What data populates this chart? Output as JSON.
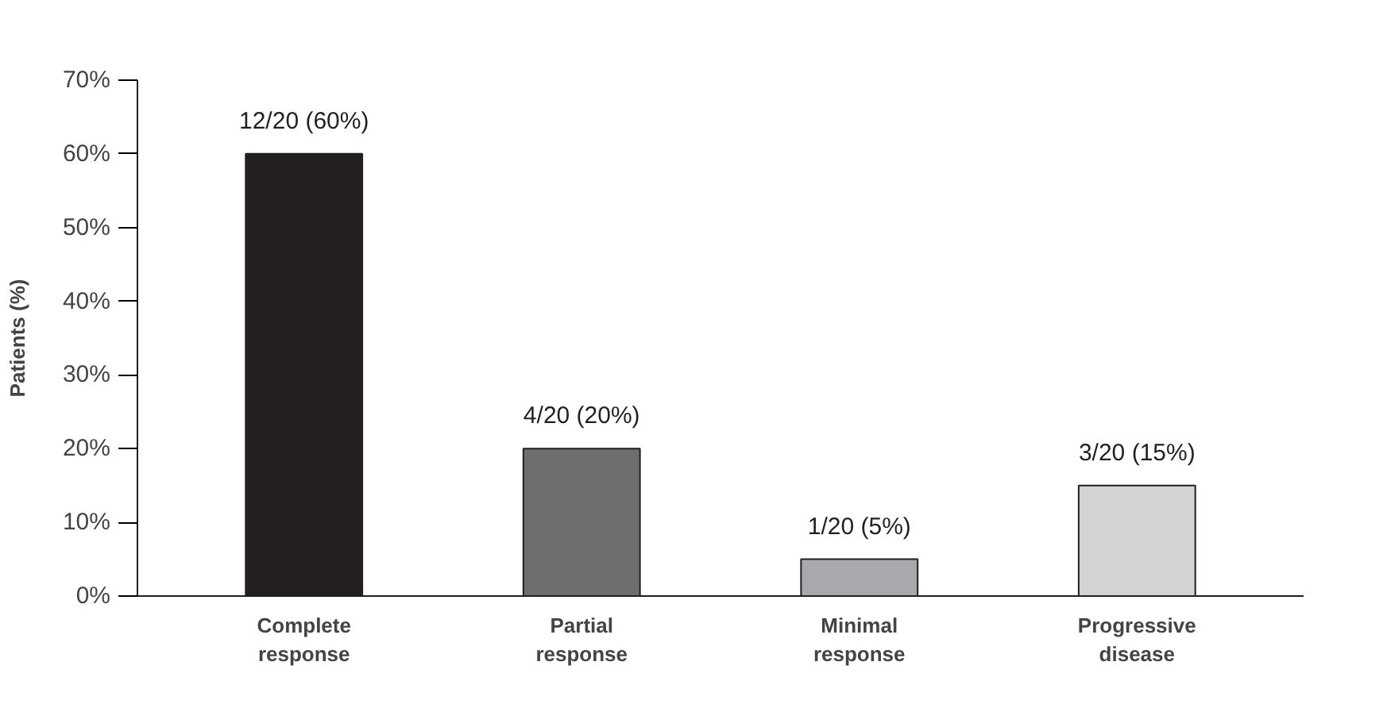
{
  "chart_data": {
    "type": "bar",
    "ylabel": "Patients (%)",
    "categories": [
      "Complete response",
      "Partial response",
      "Minimal response",
      "Progressive disease"
    ],
    "values": [
      60,
      20,
      5,
      15
    ],
    "colors": [
      "#231f20",
      "#6d6e70",
      "#a7a9ac",
      "#d1d3d4"
    ],
    "value_labels": [
      "12/20 (60%)",
      "4/20 (20%)",
      "1/20 (5%)",
      "3/20 (15%)"
    ],
    "ylim": [
      0,
      70
    ],
    "yticks": [
      {
        "value": 0,
        "label": "0%"
      },
      {
        "value": 10,
        "label": "10%"
      },
      {
        "value": 20,
        "label": "20%"
      },
      {
        "value": 30,
        "label": "30%"
      },
      {
        "value": 40,
        "label": "40%"
      },
      {
        "value": 50,
        "label": "50%"
      },
      {
        "value": 60,
        "label": "60%"
      },
      {
        "value": 70,
        "label": "70%"
      }
    ],
    "grid": false
  }
}
